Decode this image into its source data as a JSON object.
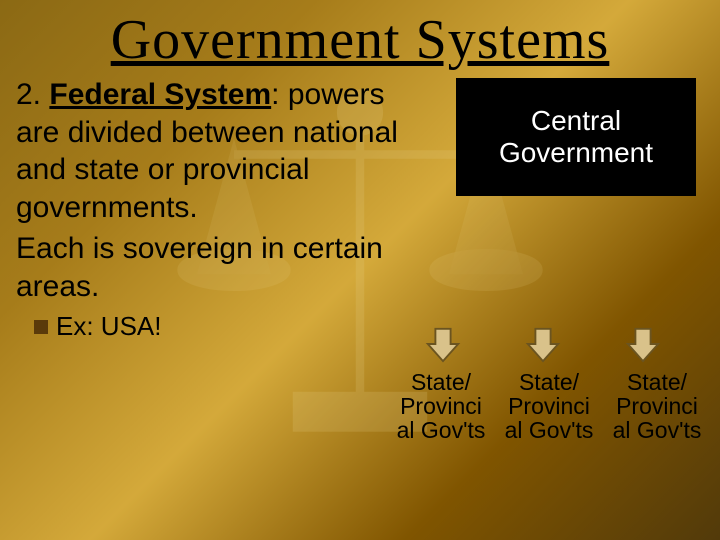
{
  "title": "Government Systems",
  "definition": {
    "number": "2.",
    "term": "Federal System",
    "body": ": powers are divided between national and state or provincial governments."
  },
  "sovereign": "Each is sovereign in certain areas.",
  "example_label": "Ex: USA!",
  "diagram": {
    "central_label": "Central Government",
    "provincial_label": "State/ Provinci al Gov'ts",
    "provincial_count": 3,
    "colors": {
      "central_bg": "#000000",
      "central_text": "#ffffff",
      "arrow_fill": "#d9c28a",
      "arrow_stroke": "#6b5420",
      "box_border": "#000000"
    }
  },
  "style": {
    "title_fontsize": 56,
    "body_fontsize": 30,
    "example_fontsize": 26,
    "central_fontsize": 28,
    "provincial_fontsize": 23,
    "bg_gradient": [
      "#8b6914",
      "#a67c1a",
      "#d4a93a",
      "#805500",
      "#523a0a"
    ],
    "bullet_color": "#5a3a0a"
  }
}
